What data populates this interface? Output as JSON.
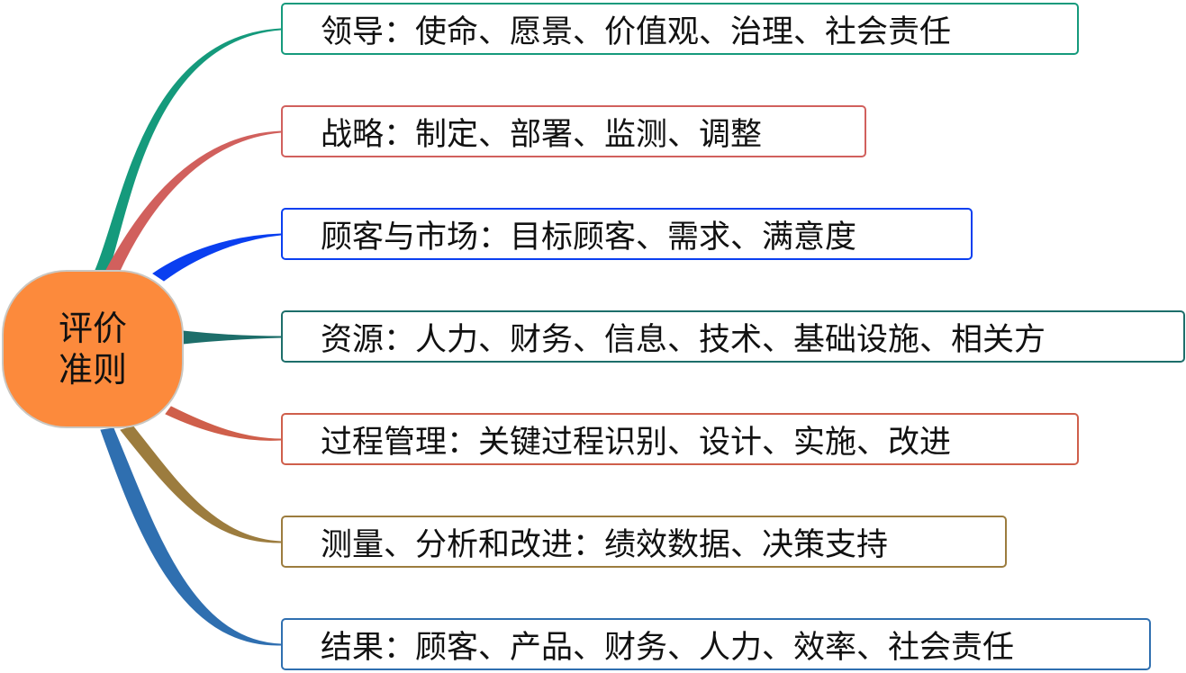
{
  "root": {
    "label": "评价准则",
    "fill_color": "#fc8a3c"
  },
  "branches": [
    {
      "label": "领导：使命、愿景、价值观、治理、社会责任",
      "color": "#159a7c"
    },
    {
      "label": "战略：制定、部署、监测、调整",
      "color": "#d1605d"
    },
    {
      "label": "顾客与市场：目标顾客、需求、满意度",
      "color": "#0a3ff0"
    },
    {
      "label": "资源：人力、财务、信息、技术、基础设施、相关方",
      "color": "#1d6e6a"
    },
    {
      "label": "过程管理：关键过程识别、设计、实施、改进",
      "color": "#cf5f4b"
    },
    {
      "label": "测量、分析和改进：绩效数据、决策支持",
      "color": "#9c7c3e"
    },
    {
      "label": "结果：顾客、产品、财务、人力、效率、社会责任",
      "color": "#2f6fb0"
    }
  ]
}
